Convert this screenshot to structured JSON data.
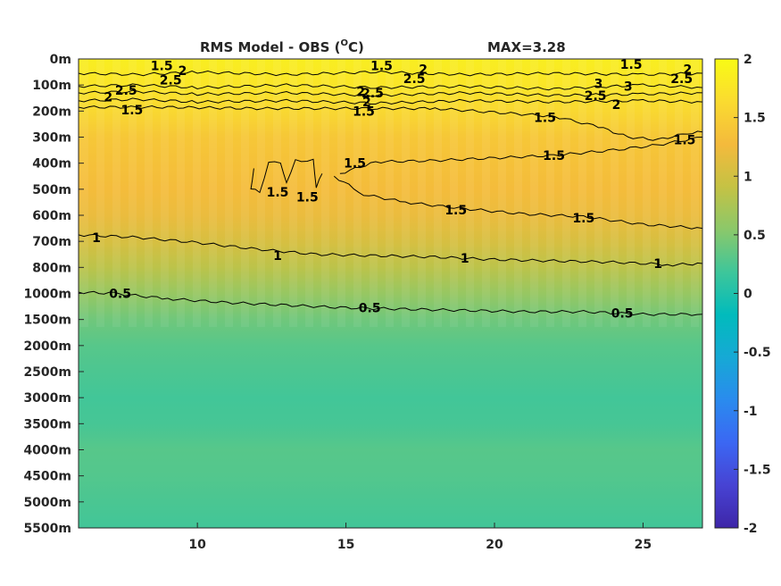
{
  "chart_data": {
    "type": "heatmap",
    "title_main": "RMS Model - OBS (",
    "title_sup": "O",
    "title_end": "C)",
    "max_label": "MAX=3.28",
    "xlim": [
      6,
      27
    ],
    "x_ticks": [
      10,
      15,
      20,
      25
    ],
    "y_ticks": [
      "0m",
      "100m",
      "200m",
      "300m",
      "400m",
      "500m",
      "600m",
      "700m",
      "800m",
      "1000m",
      "1500m",
      "2000m",
      "2500m",
      "3000m",
      "3500m",
      "4000m",
      "4500m",
      "5000m",
      "5500m"
    ],
    "colorbar": {
      "range": [
        -2,
        2
      ],
      "ticks": [
        "2",
        "1.5",
        "1",
        "0.5",
        "0",
        "-0.5",
        "-1",
        "-1.5",
        "-2"
      ],
      "colormap": "parula",
      "stops": [
        "#3e26a8",
        "#4743d3",
        "#3b67f3",
        "#2a8bee",
        "#16a9d5",
        "#01bbbc",
        "#3ec69a",
        "#8bc86a",
        "#c5c244",
        "#f4ba3c",
        "#fadb30",
        "#f9fb15"
      ]
    },
    "field_profile": [
      {
        "depth_index": 0,
        "value": 1.85
      },
      {
        "depth_index": 1,
        "value": 1.75
      },
      {
        "depth_index": 2,
        "value": 1.6
      },
      {
        "depth_index": 3,
        "value": 1.42
      },
      {
        "depth_index": 4,
        "value": 1.35
      },
      {
        "depth_index": 5,
        "value": 1.3
      },
      {
        "depth_index": 6,
        "value": 1.2
      },
      {
        "depth_index": 7,
        "value": 1.05
      },
      {
        "depth_index": 8,
        "value": 0.85
      },
      {
        "depth_index": 9,
        "value": 0.62
      },
      {
        "depth_index": 10,
        "value": 0.42
      },
      {
        "depth_index": 11,
        "value": 0.3
      },
      {
        "depth_index": 12,
        "value": 0.25
      },
      {
        "depth_index": 13,
        "value": 0.2
      },
      {
        "depth_index": 14,
        "value": 0.22
      },
      {
        "depth_index": 15,
        "value": 0.3
      },
      {
        "depth_index": 16,
        "value": 0.28
      },
      {
        "depth_index": 17,
        "value": 0.24
      },
      {
        "depth_index": 18,
        "value": 0.2
      }
    ],
    "contour_labels": [
      {
        "text": "1.5",
        "x": 8.8,
        "depth_index": 0.25
      },
      {
        "text": "2",
        "x": 9.5,
        "depth_index": 0.45
      },
      {
        "text": "2.5",
        "x": 9.1,
        "depth_index": 0.8
      },
      {
        "text": "2",
        "x": 7.0,
        "depth_index": 1.45
      },
      {
        "text": "2.5",
        "x": 7.6,
        "depth_index": 1.2
      },
      {
        "text": "1.5",
        "x": 7.8,
        "depth_index": 1.95
      },
      {
        "text": "1.5",
        "x": 16.2,
        "depth_index": 0.25
      },
      {
        "text": "2",
        "x": 17.6,
        "depth_index": 0.4
      },
      {
        "text": "2.5",
        "x": 17.3,
        "depth_index": 0.75
      },
      {
        "text": "2",
        "x": 15.5,
        "depth_index": 1.25
      },
      {
        "text": "2.5",
        "x": 15.9,
        "depth_index": 1.3
      },
      {
        "text": "2",
        "x": 15.7,
        "depth_index": 1.65
      },
      {
        "text": "1.5",
        "x": 15.6,
        "depth_index": 2.0
      },
      {
        "text": "1.5",
        "x": 24.6,
        "depth_index": 0.2
      },
      {
        "text": "2",
        "x": 26.5,
        "depth_index": 0.4
      },
      {
        "text": "2.5",
        "x": 26.3,
        "depth_index": 0.75
      },
      {
        "text": "3",
        "x": 23.5,
        "depth_index": 0.95
      },
      {
        "text": "3",
        "x": 24.5,
        "depth_index": 1.05
      },
      {
        "text": "2.5",
        "x": 23.4,
        "depth_index": 1.4
      },
      {
        "text": "2",
        "x": 24.1,
        "depth_index": 1.75
      },
      {
        "text": "1.5",
        "x": 21.7,
        "depth_index": 2.25
      },
      {
        "text": "1.5",
        "x": 26.4,
        "depth_index": 3.1
      },
      {
        "text": "1.5",
        "x": 22.0,
        "depth_index": 3.7
      },
      {
        "text": "1.5",
        "x": 15.3,
        "depth_index": 4.0
      },
      {
        "text": "1.5",
        "x": 12.7,
        "depth_index": 5.1
      },
      {
        "text": "1.5",
        "x": 13.7,
        "depth_index": 5.3
      },
      {
        "text": "1.5",
        "x": 18.7,
        "depth_index": 5.8
      },
      {
        "text": "1.5",
        "x": 23.0,
        "depth_index": 6.1
      },
      {
        "text": "1",
        "x": 6.6,
        "depth_index": 6.85
      },
      {
        "text": "1",
        "x": 12.7,
        "depth_index": 7.55
      },
      {
        "text": "1",
        "x": 19.0,
        "depth_index": 7.65
      },
      {
        "text": "1",
        "x": 25.5,
        "depth_index": 7.85
      },
      {
        "text": "0.5",
        "x": 7.4,
        "depth_index": 9.0
      },
      {
        "text": "0.5",
        "x": 15.8,
        "depth_index": 9.55
      },
      {
        "text": "0.5",
        "x": 24.3,
        "depth_index": 9.75
      }
    ],
    "contour_lines": [
      {
        "level": 2.5,
        "points": [
          [
            6,
            0.55
          ],
          [
            8,
            0.6
          ],
          [
            10,
            0.5
          ],
          [
            13,
            0.6
          ],
          [
            16,
            0.5
          ],
          [
            19,
            0.6
          ],
          [
            22,
            0.55
          ],
          [
            25,
            0.6
          ],
          [
            27,
            0.55
          ]
        ]
      },
      {
        "level": 2.5,
        "points": [
          [
            6,
            1.05
          ],
          [
            8,
            1.0
          ],
          [
            10,
            1.1
          ],
          [
            13,
            1.0
          ],
          [
            16,
            1.1
          ],
          [
            19,
            1.05
          ],
          [
            22,
            1.15
          ],
          [
            25,
            1.0
          ],
          [
            27,
            1.1
          ]
        ]
      },
      {
        "level": 2,
        "points": [
          [
            6,
            1.3
          ],
          [
            8,
            1.25
          ],
          [
            10,
            1.35
          ],
          [
            13,
            1.3
          ],
          [
            16,
            1.4
          ],
          [
            19,
            1.3
          ],
          [
            22,
            1.4
          ],
          [
            25,
            1.35
          ],
          [
            27,
            1.3
          ]
        ]
      },
      {
        "level": 2,
        "points": [
          [
            6,
            1.6
          ],
          [
            8,
            1.55
          ],
          [
            10,
            1.65
          ],
          [
            13,
            1.6
          ],
          [
            16,
            1.7
          ],
          [
            19,
            1.6
          ],
          [
            22,
            1.65
          ],
          [
            25,
            1.6
          ],
          [
            27,
            1.65
          ]
        ]
      },
      {
        "level": 1.5,
        "points": [
          [
            6,
            1.85
          ],
          [
            9,
            1.85
          ],
          [
            12,
            1.9
          ],
          [
            15,
            1.9
          ],
          [
            18,
            1.9
          ],
          [
            20,
            2.05
          ],
          [
            22,
            2.2
          ],
          [
            23.5,
            2.6
          ],
          [
            24.5,
            3.0
          ],
          [
            25.5,
            3.1
          ],
          [
            26.5,
            2.85
          ],
          [
            27,
            2.8
          ]
        ]
      },
      {
        "level": 1.5,
        "points": [
          [
            14.8,
            4.4
          ],
          [
            16,
            3.95
          ],
          [
            18,
            3.9
          ],
          [
            20,
            3.8
          ],
          [
            22,
            3.7
          ],
          [
            24,
            3.5
          ],
          [
            25.5,
            3.3
          ],
          [
            27,
            3.0
          ]
        ]
      },
      {
        "level": 1.5,
        "points": [
          [
            14.6,
            4.5
          ],
          [
            15.6,
            5.2
          ],
          [
            17,
            5.5
          ],
          [
            19,
            5.75
          ],
          [
            21,
            5.95
          ],
          [
            23,
            6.05
          ],
          [
            25,
            6.35
          ],
          [
            27,
            6.5
          ]
        ]
      },
      {
        "level": 1.5,
        "points": [
          [
            11.9,
            4.2
          ],
          [
            11.8,
            5.0
          ],
          [
            12.1,
            5.1
          ],
          [
            12.4,
            4.0
          ],
          [
            12.8,
            3.95
          ],
          [
            13.0,
            4.8
          ],
          [
            13.3,
            3.9
          ],
          [
            13.9,
            3.9
          ],
          [
            14.0,
            4.9
          ],
          [
            14.2,
            4.4
          ]
        ]
      },
      {
        "level": 1,
        "points": [
          [
            6,
            6.75
          ],
          [
            8,
            6.85
          ],
          [
            10,
            7.05
          ],
          [
            12,
            7.3
          ],
          [
            14,
            7.5
          ],
          [
            16,
            7.55
          ],
          [
            18,
            7.6
          ],
          [
            20,
            7.7
          ],
          [
            22,
            7.75
          ],
          [
            24,
            7.8
          ],
          [
            26,
            7.9
          ],
          [
            27,
            7.85
          ]
        ]
      },
      {
        "level": 0.5,
        "points": [
          [
            6,
            8.95
          ],
          [
            7.2,
            9.0
          ],
          [
            9,
            9.2
          ],
          [
            11,
            9.35
          ],
          [
            13,
            9.45
          ],
          [
            15,
            9.55
          ],
          [
            17,
            9.6
          ],
          [
            19,
            9.65
          ],
          [
            21,
            9.7
          ],
          [
            23,
            9.7
          ],
          [
            25,
            9.8
          ],
          [
            27,
            9.8
          ]
        ]
      }
    ]
  }
}
